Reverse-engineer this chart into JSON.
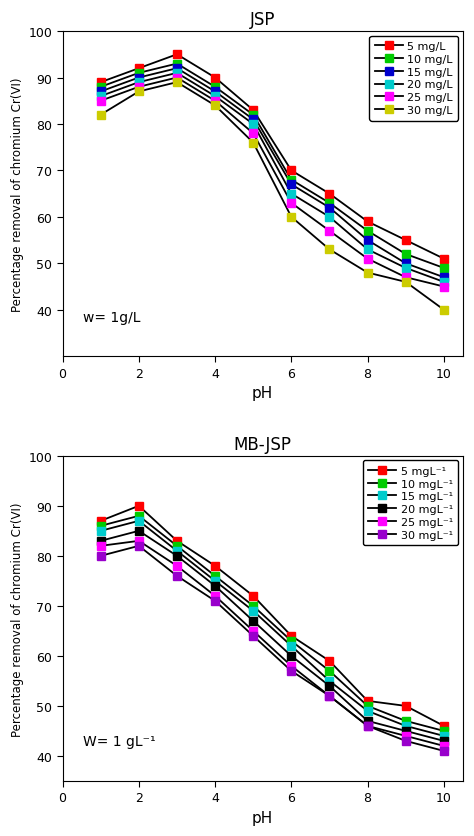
{
  "jsp": {
    "title": "JSP",
    "xlabel": "pH",
    "ylabel": "Percentage removal of chromium Cr(VI)",
    "annotation": "w= 1g/L",
    "ylim": [
      30,
      100
    ],
    "yticks": [
      40,
      50,
      60,
      70,
      80,
      90,
      100
    ],
    "xlim": [
      0,
      10.5
    ],
    "xticks": [
      0,
      2,
      4,
      6,
      8,
      10
    ],
    "ph": [
      1,
      2,
      3,
      4,
      5,
      6,
      7,
      8,
      9,
      10
    ],
    "series": [
      {
        "label": "5 mg/L",
        "color": "#ff0000",
        "data": [
          89,
          92,
          95,
          90,
          83,
          70,
          65,
          59,
          55,
          51
        ]
      },
      {
        "label": "10 mg/L",
        "color": "#00cc00",
        "data": [
          88,
          91,
          93,
          88,
          82,
          68,
          63,
          57,
          52,
          49
        ]
      },
      {
        "label": "15 mg/L",
        "color": "#0000cc",
        "data": [
          87,
          90,
          92,
          87,
          81,
          67,
          62,
          55,
          50,
          47
        ]
      },
      {
        "label": "20 mg/L",
        "color": "#00cccc",
        "data": [
          86,
          89,
          91,
          86,
          80,
          65,
          60,
          53,
          49,
          46
        ]
      },
      {
        "label": "25 mg/L",
        "color": "#ff00ff",
        "data": [
          85,
          88,
          90,
          85,
          78,
          63,
          57,
          51,
          47,
          45
        ]
      },
      {
        "label": "30 mg/L",
        "color": "#cccc00",
        "data": [
          82,
          87,
          89,
          84,
          76,
          60,
          53,
          48,
          46,
          40
        ]
      }
    ]
  },
  "mbjsp": {
    "title": "MB-JSP",
    "xlabel": "pH",
    "ylabel": "Percentage removal of chromium Cr(VI)",
    "annotation": "W= 1 gL⁻¹",
    "ylim": [
      35,
      100
    ],
    "yticks": [
      40,
      50,
      60,
      70,
      80,
      90,
      100
    ],
    "xlim": [
      0,
      10.5
    ],
    "xticks": [
      0,
      2,
      4,
      6,
      8,
      10
    ],
    "ph": [
      1,
      2,
      3,
      4,
      5,
      6,
      7,
      8,
      9,
      10
    ],
    "series": [
      {
        "label": "5 mgL⁻¹",
        "color": "#ff0000",
        "data": [
          87,
          90,
          83,
          78,
          72,
          64,
          59,
          51,
          50,
          46
        ]
      },
      {
        "label": "10 mgL⁻¹",
        "color": "#00cc00",
        "data": [
          86,
          88,
          82,
          76,
          70,
          63,
          57,
          50,
          47,
          45
        ]
      },
      {
        "label": "15 mgL⁻¹",
        "color": "#00cccc",
        "data": [
          85,
          87,
          81,
          75,
          69,
          62,
          55,
          49,
          46,
          44
        ]
      },
      {
        "label": "20 mgL⁻¹",
        "color": "#000000",
        "data": [
          83,
          85,
          80,
          74,
          67,
          60,
          54,
          47,
          45,
          43
        ]
      },
      {
        "label": "25 mgL⁻¹",
        "color": "#ff00ff",
        "data": [
          82,
          83,
          78,
          72,
          65,
          58,
          52,
          46,
          44,
          42
        ]
      },
      {
        "label": "30 mgL⁻¹",
        "color": "#9900cc",
        "data": [
          80,
          82,
          76,
          71,
          64,
          57,
          52,
          46,
          43,
          41
        ]
      }
    ]
  }
}
